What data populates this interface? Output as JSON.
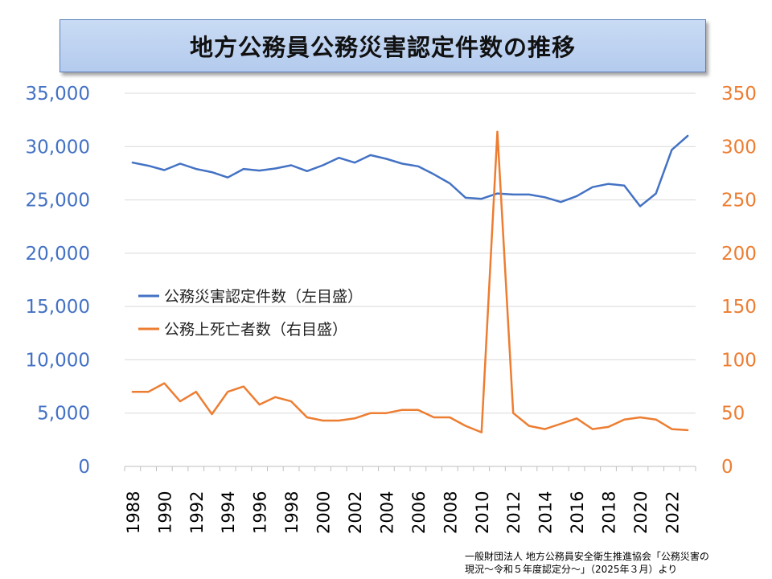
{
  "title": "地方公務員公務災害認定件数の推移",
  "source": {
    "line1": "一般財団法人 地方公務員安全衛生推進協会「公務災害の",
    "line2": "現況～令和５年度認定分～」（2025年３月）より"
  },
  "colors": {
    "left_series": "#4472c4",
    "right_series": "#ed7d31",
    "grid": "#d9d9d9"
  },
  "chart_data": {
    "type": "line",
    "title": "地方公務員公務災害認定件数の推移",
    "x": [
      1988,
      1989,
      1990,
      1991,
      1992,
      1993,
      1994,
      1995,
      1996,
      1997,
      1998,
      1999,
      2000,
      2001,
      2002,
      2003,
      2004,
      2005,
      2006,
      2007,
      2008,
      2009,
      2010,
      2011,
      2012,
      2013,
      2014,
      2015,
      2016,
      2017,
      2018,
      2019,
      2020,
      2021,
      2022,
      2023
    ],
    "x_tick_labels": [
      "1988",
      "1990",
      "1992",
      "1994",
      "1996",
      "1998",
      "2000",
      "2002",
      "2004",
      "2006",
      "2008",
      "2010",
      "2012",
      "2014",
      "2016",
      "2018",
      "2020",
      "2022"
    ],
    "y_left": {
      "lim": [
        0,
        35000
      ],
      "ticks": [
        "0",
        "5,000",
        "10,000",
        "15,000",
        "20,000",
        "25,000",
        "30,000",
        "35,000"
      ],
      "tick_values": [
        0,
        5000,
        10000,
        15000,
        20000,
        25000,
        30000,
        35000
      ]
    },
    "y_right": {
      "lim": [
        0,
        350
      ],
      "ticks": [
        "0",
        "50",
        "100",
        "150",
        "200",
        "250",
        "300",
        "350"
      ],
      "tick_values": [
        0,
        50,
        100,
        150,
        200,
        250,
        300,
        350
      ]
    },
    "grid": true,
    "legend_position": "center-left",
    "series": [
      {
        "name": "公務災害認定件数（左目盛）",
        "axis": "left",
        "values": [
          28500,
          28200,
          27800,
          28400,
          27900,
          27600,
          27100,
          27900,
          27750,
          27950,
          28250,
          27700,
          28250,
          28950,
          28500,
          29200,
          28850,
          28400,
          28150,
          27400,
          26550,
          25200,
          25100,
          25600,
          25500,
          25500,
          25250,
          24800,
          25350,
          26200,
          26500,
          26350,
          24400,
          25600,
          29700,
          31000
        ]
      },
      {
        "name": "公務上死亡者数（右目盛）",
        "axis": "right",
        "values": [
          70,
          70,
          78,
          61,
          70,
          49,
          70,
          75,
          58,
          65,
          61,
          46,
          43,
          43,
          45,
          50,
          50,
          53,
          53,
          46,
          46,
          38,
          32,
          314,
          50,
          38,
          35,
          40,
          45,
          35,
          37,
          44,
          46,
          44,
          35,
          34
        ]
      }
    ]
  }
}
